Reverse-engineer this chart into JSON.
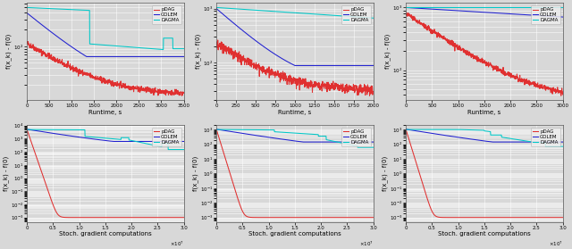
{
  "legend_labels": [
    "pDAG",
    "GOLEM",
    "DAGMA"
  ],
  "legend_colors": [
    "#e03030",
    "#2020d0",
    "#00c8c8"
  ],
  "bg_color": "#d8d8d8",
  "grid_color": "#ffffff",
  "figsize": [
    6.4,
    2.79
  ],
  "dpi": 100,
  "subplots": [
    {
      "row": 0,
      "col": 0,
      "xlabel": "Runtime, s",
      "xlim": [
        0,
        3500
      ],
      "xticks": [
        0,
        500,
        1000,
        1500,
        2000,
        2500,
        3000,
        3500
      ],
      "ylabel": "f(x_k) - f(0)"
    },
    {
      "row": 0,
      "col": 1,
      "xlabel": "Runtime, s",
      "xlim": [
        0,
        2000
      ],
      "xticks": [
        0,
        250,
        500,
        750,
        1000,
        1250,
        1500,
        1750,
        2000
      ],
      "ylabel": "f(x_k) - f(0)"
    },
    {
      "row": 0,
      "col": 2,
      "xlabel": "Runtime, s",
      "xlim": [
        0,
        3000
      ],
      "xticks": [
        0,
        500,
        1000,
        1500,
        2000,
        2500,
        3000
      ],
      "ylabel": "f(x_k) - f(0)"
    },
    {
      "row": 1,
      "col": 0,
      "xlabel": "Stoch. gradient computations",
      "xlim": [
        0,
        30000000.0
      ],
      "ylabel": "f(x_k) - f(0)"
    },
    {
      "row": 1,
      "col": 1,
      "xlabel": "Stoch. gradient computations",
      "xlim": [
        0,
        30000000.0
      ],
      "ylabel": "f(x_k) - f(0)"
    },
    {
      "row": 1,
      "col": 2,
      "xlabel": "Stoch. gradient computations",
      "xlim": [
        0,
        30000000.0
      ],
      "ylabel": "f(x_k) - f(0)"
    }
  ]
}
